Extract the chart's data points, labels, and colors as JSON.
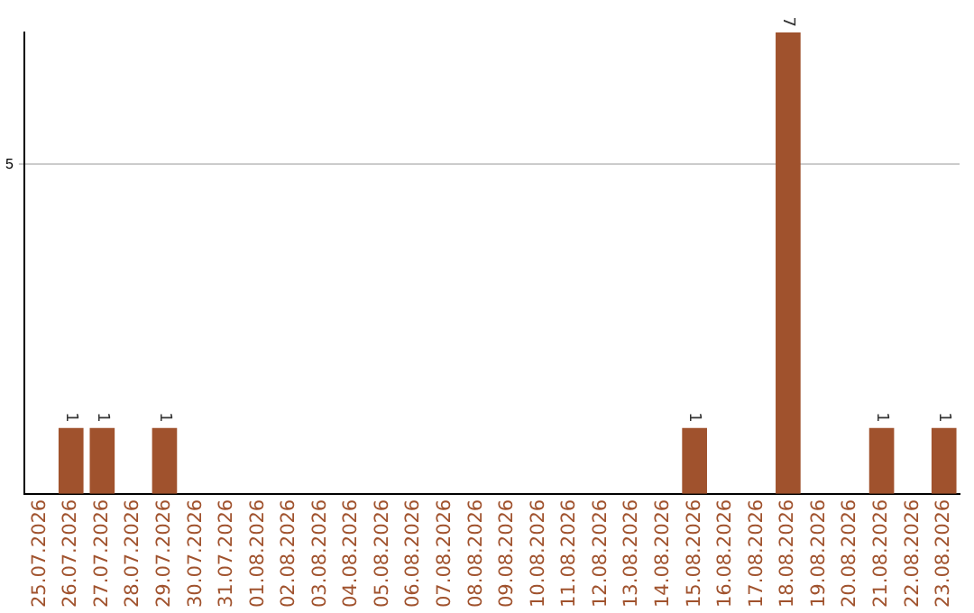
{
  "chart_data": {
    "type": "bar",
    "categories": [
      "25.07.2026",
      "26.07.2026",
      "27.07.2026",
      "28.07.2026",
      "29.07.2026",
      "30.07.2026",
      "31.07.2026",
      "01.08.2026",
      "02.08.2026",
      "03.08.2026",
      "04.08.2026",
      "05.08.2026",
      "06.08.2026",
      "07.08.2026",
      "08.08.2026",
      "09.08.2026",
      "10.08.2026",
      "11.08.2026",
      "12.08.2026",
      "13.08.2026",
      "14.08.2026",
      "15.08.2026",
      "16.08.2026",
      "17.08.2026",
      "18.08.2026",
      "19.08.2026",
      "20.08.2026",
      "21.08.2026",
      "22.08.2026",
      "23.08.2026"
    ],
    "values": [
      0,
      1,
      1,
      0,
      1,
      0,
      0,
      0,
      0,
      0,
      0,
      0,
      0,
      0,
      0,
      0,
      0,
      0,
      0,
      0,
      0,
      1,
      0,
      0,
      7,
      0,
      0,
      1,
      0,
      1
    ],
    "value_labels": [
      null,
      "1",
      "1",
      null,
      "1",
      null,
      null,
      null,
      null,
      null,
      null,
      null,
      null,
      null,
      null,
      null,
      null,
      null,
      null,
      null,
      null,
      "1",
      null,
      null,
      "7",
      null,
      null,
      "1",
      null,
      "1"
    ],
    "color": "#a0522d",
    "ylim": [
      0,
      7
    ],
    "yticks": [
      5
    ],
    "grid": "y",
    "legend": false
  }
}
